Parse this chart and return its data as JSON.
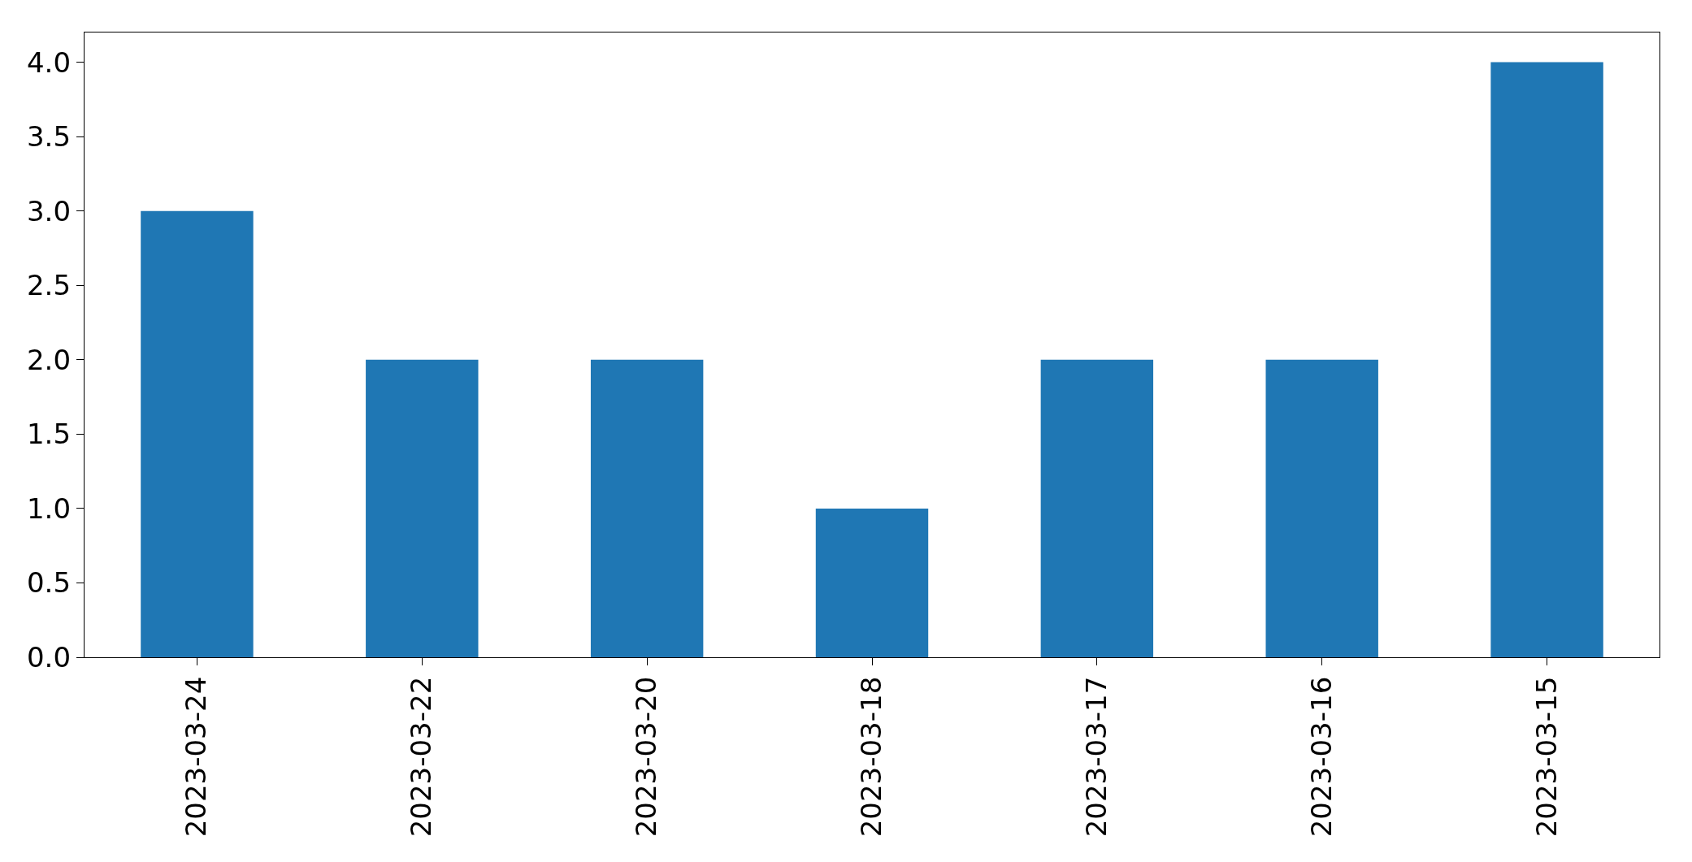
{
  "chart_data": {
    "type": "bar",
    "categories": [
      "2023-03-24",
      "2023-03-22",
      "2023-03-20",
      "2023-03-18",
      "2023-03-17",
      "2023-03-16",
      "2023-03-15"
    ],
    "values": [
      3,
      2,
      2,
      1,
      2,
      2,
      4
    ],
    "color": "#1f77b4",
    "ylim": [
      0,
      4.2
    ],
    "yticks": [
      {
        "value": 0,
        "label": "0.0"
      },
      {
        "value": 0.5,
        "label": "0.5"
      },
      {
        "value": 1,
        "label": "1.0"
      },
      {
        "value": 1.5,
        "label": "1.5"
      },
      {
        "value": 2,
        "label": "2.0"
      },
      {
        "value": 2.5,
        "label": "2.5"
      },
      {
        "value": 3,
        "label": "3.0"
      },
      {
        "value": 3.5,
        "label": "3.5"
      },
      {
        "value": 4,
        "label": "4.0"
      }
    ]
  }
}
